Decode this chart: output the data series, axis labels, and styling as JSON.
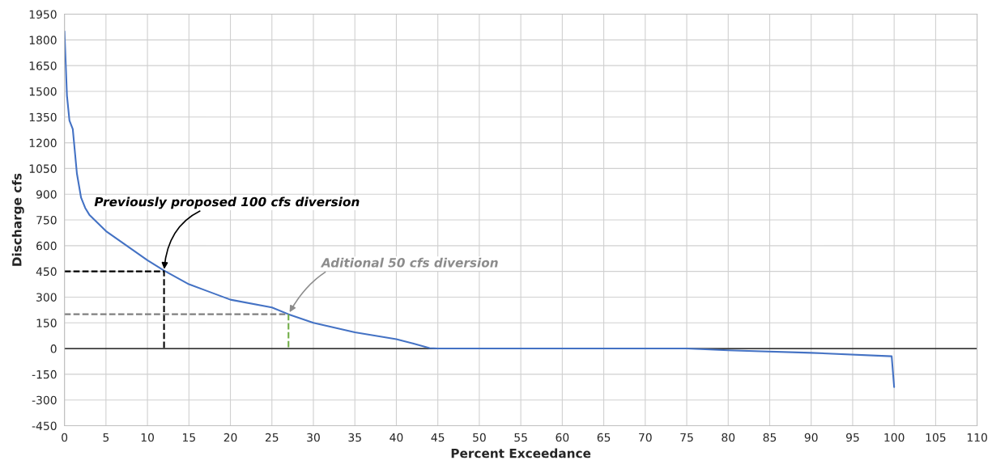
{
  "chart_data": {
    "type": "line",
    "xlabel": "Percent Exceedance",
    "ylabel": "Discharge cfs",
    "xlim": [
      0,
      110
    ],
    "xticks": [
      0,
      5,
      10,
      15,
      20,
      25,
      30,
      35,
      40,
      45,
      50,
      55,
      60,
      65,
      70,
      75,
      80,
      85,
      90,
      95,
      100,
      105,
      110
    ],
    "ylim": [
      -450,
      1950
    ],
    "yticks": [
      -450,
      -300,
      -150,
      0,
      150,
      300,
      450,
      600,
      750,
      900,
      1050,
      1200,
      1350,
      1500,
      1650,
      1800,
      1950
    ],
    "grid": true,
    "line_style": "solid",
    "marker": "none",
    "ref_lines": [
      {
        "axis": "y",
        "value": 0,
        "color": "#000000"
      }
    ],
    "series": [
      {
        "color": "#4472c4",
        "x": [
          0,
          0.3,
          0.6,
          1,
          1.5,
          2,
          2.5,
          3,
          5,
          10,
          12,
          15,
          20,
          25,
          27,
          30,
          35,
          40,
          42,
          44,
          45,
          75,
          80,
          90,
          99.7,
          100
        ],
        "values": [
          1850,
          1475,
          1330,
          1280,
          1020,
          880,
          820,
          780,
          685,
          515,
          455,
          375,
          285,
          240,
          200,
          150,
          95,
          55,
          30,
          3,
          0,
          0,
          -10,
          -25,
          -45,
          -225
        ]
      },
      {
        "color": "#000000",
        "line_style": "dashed",
        "x": [
          0,
          12,
          12
        ],
        "values": [
          450,
          450,
          0
        ]
      },
      {
        "color": "#808080",
        "line_style": "dashed",
        "x": [
          0,
          27
        ],
        "values": [
          200,
          200
        ]
      },
      {
        "color": "#70ad47",
        "line_style": "dashed",
        "x": [
          27,
          27
        ],
        "values": [
          200,
          0
        ]
      }
    ],
    "annotations": [
      {
        "text": "Previously proposed 100 cfs diversion",
        "x": 12,
        "y": 450
      },
      {
        "text": "Aditional 50 cfs diversion",
        "x": 27,
        "y": 200
      }
    ]
  }
}
